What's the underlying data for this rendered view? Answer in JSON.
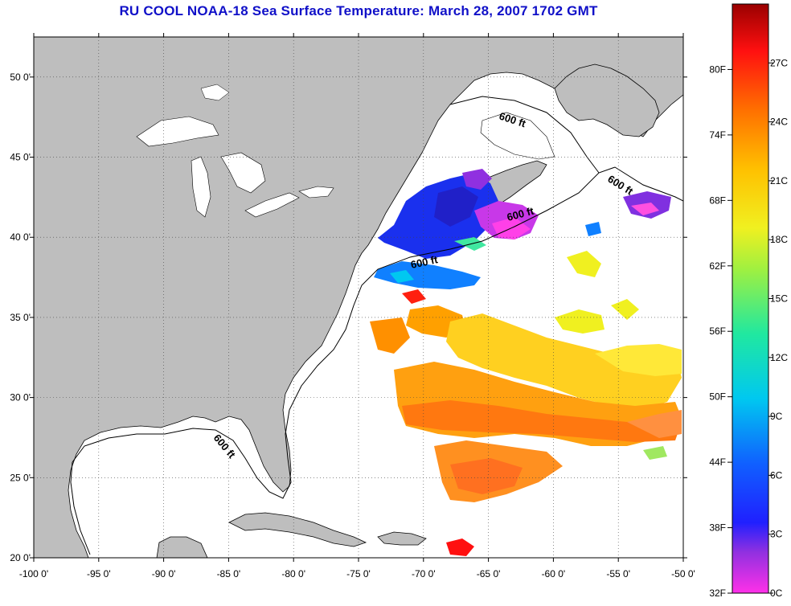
{
  "title": "RU COOL  NOAA-18  Sea Surface Temperature:  March 28, 2007 1702 GMT",
  "map": {
    "lon_range": [
      -100,
      -50
    ],
    "lat_range": [
      20,
      52.5
    ],
    "lon_ticks": [
      "-100 0'",
      "-95 0'",
      "-90 0'",
      "-85 0'",
      "-80 0'",
      "-75 0'",
      "-70 0'",
      "-65 0'",
      "-60 0'",
      "-55 0'",
      "-50 0'"
    ],
    "lat_ticks": [
      "20 0'",
      "25 0'",
      "30 0'",
      "35 0'",
      "40 0'",
      "45 0'",
      "50 0'"
    ],
    "grid": true,
    "contour_label": "600 ft",
    "land_color": "#bebebe",
    "water_color": "#ffffff"
  },
  "colorbar": {
    "fahrenheit_labels": [
      "80F",
      "74F",
      "68F",
      "62F",
      "56F",
      "50F",
      "44F",
      "38F",
      "32F"
    ],
    "celsius_labels": [
      "27C",
      "24C",
      "21C",
      "18C",
      "15C",
      "12C",
      "9C",
      "6C",
      "3C",
      "0C"
    ]
  }
}
